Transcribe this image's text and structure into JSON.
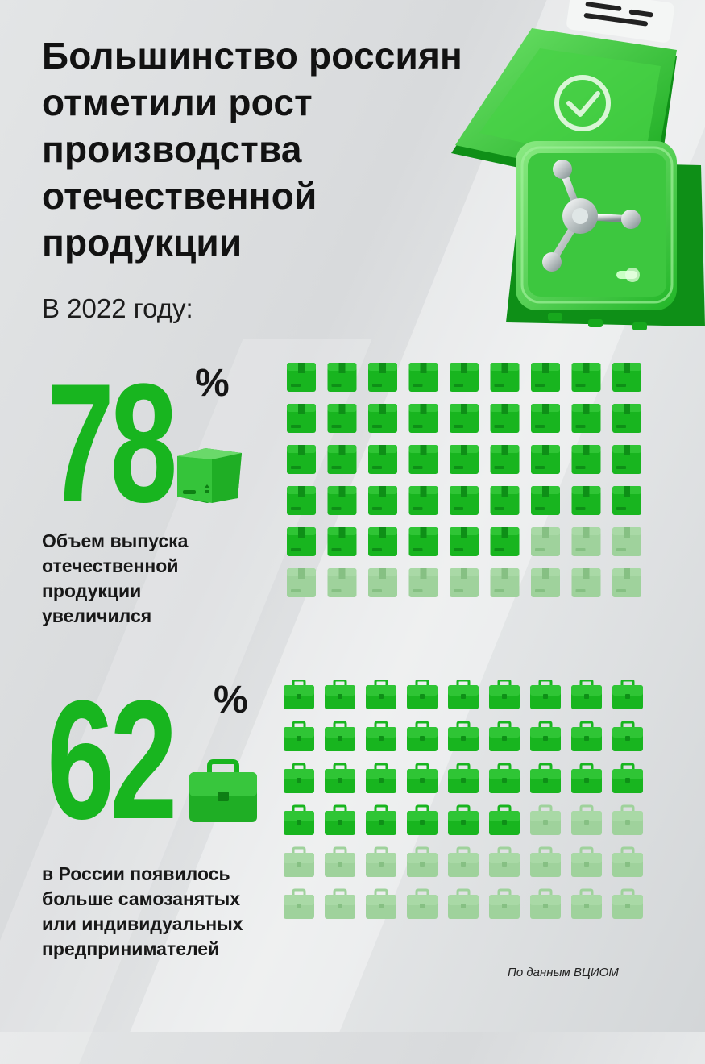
{
  "title_lines": [
    "Большинство россиян",
    "отметили рост",
    "производства",
    "отечественной",
    "продукции"
  ],
  "subtitle": "В 2022 году:",
  "stat1": {
    "value": "78",
    "unit": "%",
    "percent": 78,
    "total_cells": 54,
    "columns": 9,
    "description_lines": [
      "Объем выпуска",
      "отечественной",
      "продукции",
      "увеличился"
    ],
    "icon": "box-icon"
  },
  "stat2": {
    "value": "62",
    "unit": "%",
    "percent": 62,
    "total_cells": 54,
    "columns": 9,
    "description_lines": [
      "в России появилось",
      "больше самозанятых",
      "или индивидуальных",
      "предпринимателей"
    ],
    "icon": "briefcase-icon"
  },
  "source": "По данным ВЦИОМ",
  "colors": {
    "accent": "#18b51f",
    "accent_dark": "#0e8f17",
    "inactive": "#9fd29c",
    "text": "#121212"
  }
}
